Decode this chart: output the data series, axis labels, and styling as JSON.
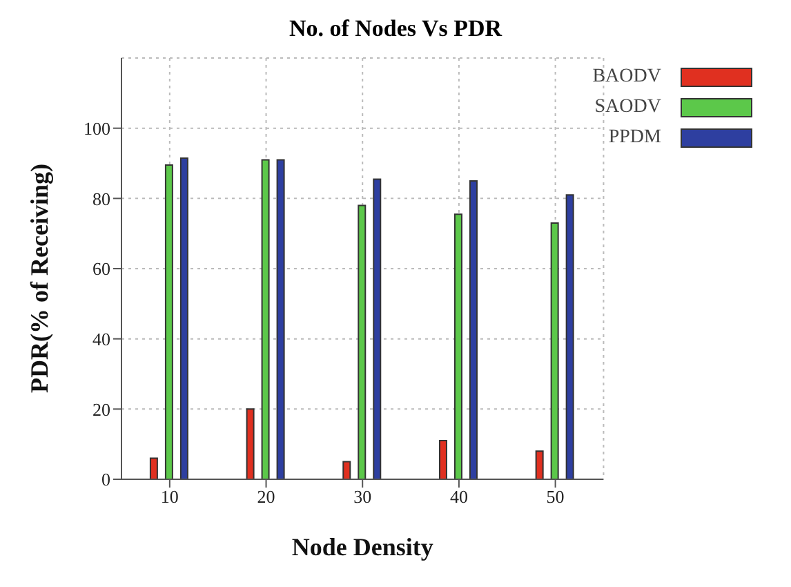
{
  "chart_data": {
    "type": "bar",
    "title": "No. of Nodes Vs PDR",
    "xlabel": "Node Density",
    "ylabel": "PDR(% of Receiving)",
    "categories": [
      "10",
      "20",
      "30",
      "40",
      "50"
    ],
    "series": [
      {
        "name": "BAODV",
        "color": "#e03020",
        "values": [
          6,
          20,
          5,
          11,
          8
        ]
      },
      {
        "name": "SAODV",
        "color": "#5cc84a",
        "values": [
          89.5,
          91,
          78,
          75.5,
          73
        ]
      },
      {
        "name": "PPDM",
        "color": "#2e3fa0",
        "values": [
          91.5,
          91,
          85.5,
          85,
          81
        ]
      }
    ],
    "ylim": [
      0,
      120
    ],
    "yticks": [
      0,
      20,
      40,
      60,
      80,
      100
    ],
    "grid": true,
    "legend": "top right"
  }
}
